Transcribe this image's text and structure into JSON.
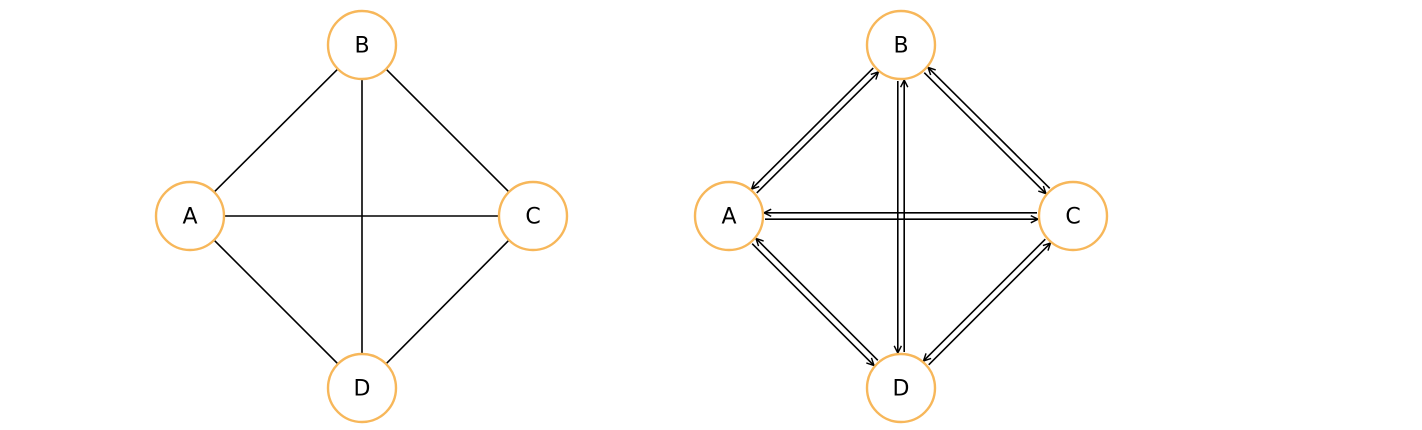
{
  "style": {
    "node_stroke": "#f7b75a",
    "edge_color": "#000000"
  },
  "graphs": [
    {
      "kind": "undirected",
      "nodes": [
        {
          "id": "A",
          "label": "A"
        },
        {
          "id": "B",
          "label": "B"
        },
        {
          "id": "C",
          "label": "C"
        },
        {
          "id": "D",
          "label": "D"
        }
      ],
      "edges": [
        [
          "A",
          "B"
        ],
        [
          "B",
          "C"
        ],
        [
          "A",
          "C"
        ],
        [
          "B",
          "D"
        ],
        [
          "A",
          "D"
        ],
        [
          "C",
          "D"
        ]
      ]
    },
    {
      "kind": "bidirected",
      "nodes": [
        {
          "id": "A",
          "label": "A"
        },
        {
          "id": "B",
          "label": "B"
        },
        {
          "id": "C",
          "label": "C"
        },
        {
          "id": "D",
          "label": "D"
        }
      ],
      "edges": [
        [
          "A",
          "B"
        ],
        [
          "B",
          "C"
        ],
        [
          "A",
          "C"
        ],
        [
          "B",
          "D"
        ],
        [
          "A",
          "D"
        ],
        [
          "C",
          "D"
        ]
      ]
    }
  ]
}
